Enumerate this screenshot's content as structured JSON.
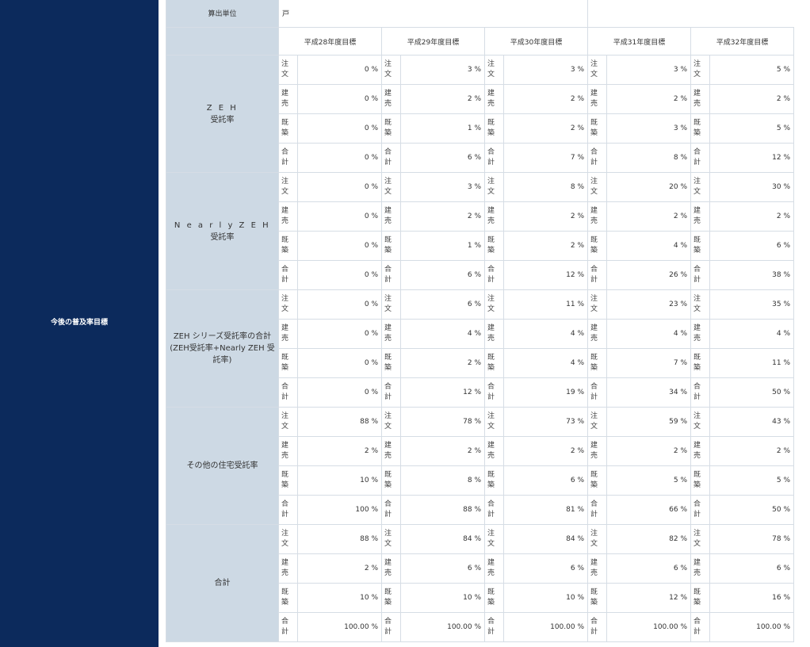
{
  "sidebar": {
    "label": "今後の普及率目標"
  },
  "calc_unit": {
    "label": "算出単位",
    "value": "戸"
  },
  "years": [
    "平成28年度目標",
    "平成29年度目標",
    "平成30年度目標",
    "平成31年度目標",
    "平成32年度目標"
  ],
  "sub_labels": {
    "order": [
      "注",
      "文"
    ],
    "built": [
      "建",
      "売"
    ],
    "existing": [
      "既",
      "築"
    ],
    "total": [
      "合",
      "計"
    ]
  },
  "categories": [
    {
      "name": "Z E H",
      "name2": "受託率",
      "rows": [
        {
          "key": "order",
          "values": [
            "0 %",
            "3 %",
            "3 %",
            "3 %",
            "5 %"
          ]
        },
        {
          "key": "built",
          "values": [
            "0 %",
            "2 %",
            "2 %",
            "2 %",
            "2 %"
          ]
        },
        {
          "key": "existing",
          "values": [
            "0 %",
            "1 %",
            "2 %",
            "3 %",
            "5 %"
          ]
        },
        {
          "key": "total",
          "values": [
            "0 %",
            "6 %",
            "7 %",
            "8 %",
            "12 %"
          ]
        }
      ]
    },
    {
      "name": "N e a r l y Z E H",
      "name2": "受託率",
      "rows": [
        {
          "key": "order",
          "values": [
            "0 %",
            "3 %",
            "8 %",
            "20 %",
            "30 %"
          ]
        },
        {
          "key": "built",
          "values": [
            "0 %",
            "2 %",
            "2 %",
            "2 %",
            "2 %"
          ]
        },
        {
          "key": "existing",
          "values": [
            "0 %",
            "1 %",
            "2 %",
            "4 %",
            "6 %"
          ]
        },
        {
          "key": "total",
          "values": [
            "0 %",
            "6 %",
            "12 %",
            "26 %",
            "38 %"
          ]
        }
      ]
    },
    {
      "name": "ZEH シリーズ受託率の合計",
      "name2": "(ZEH受託率+Nearly ZEH 受託率)",
      "rows": [
        {
          "key": "order",
          "values": [
            "0 %",
            "6 %",
            "11 %",
            "23 %",
            "35 %"
          ]
        },
        {
          "key": "built",
          "values": [
            "0 %",
            "4 %",
            "4 %",
            "4 %",
            "4 %"
          ]
        },
        {
          "key": "existing",
          "values": [
            "0 %",
            "2 %",
            "4 %",
            "7 %",
            "11 %"
          ]
        },
        {
          "key": "total",
          "values": [
            "0 %",
            "12 %",
            "19 %",
            "34 %",
            "50 %"
          ]
        }
      ]
    },
    {
      "name": "その他の住宅受託率",
      "name2": "",
      "rows": [
        {
          "key": "order",
          "values": [
            "88 %",
            "78 %",
            "73 %",
            "59 %",
            "43 %"
          ]
        },
        {
          "key": "built",
          "values": [
            "2 %",
            "2 %",
            "2 %",
            "2 %",
            "2 %"
          ]
        },
        {
          "key": "existing",
          "values": [
            "10 %",
            "8 %",
            "6 %",
            "5 %",
            "5 %"
          ]
        },
        {
          "key": "total",
          "values": [
            "100 %",
            "88 %",
            "81 %",
            "66 %",
            "50 %"
          ]
        }
      ]
    },
    {
      "name": "合計",
      "name2": "",
      "rows": [
        {
          "key": "order",
          "values": [
            "88 %",
            "84 %",
            "84 %",
            "82 %",
            "78 %"
          ]
        },
        {
          "key": "built",
          "values": [
            "2 %",
            "6 %",
            "6 %",
            "6 %",
            "6 %"
          ]
        },
        {
          "key": "existing",
          "values": [
            "10 %",
            "10 %",
            "10 %",
            "12 %",
            "16 %"
          ]
        },
        {
          "key": "total",
          "values": [
            "100.00 %",
            "100.00 %",
            "100.00 %",
            "100.00 %",
            "100.00 %"
          ]
        }
      ]
    }
  ]
}
